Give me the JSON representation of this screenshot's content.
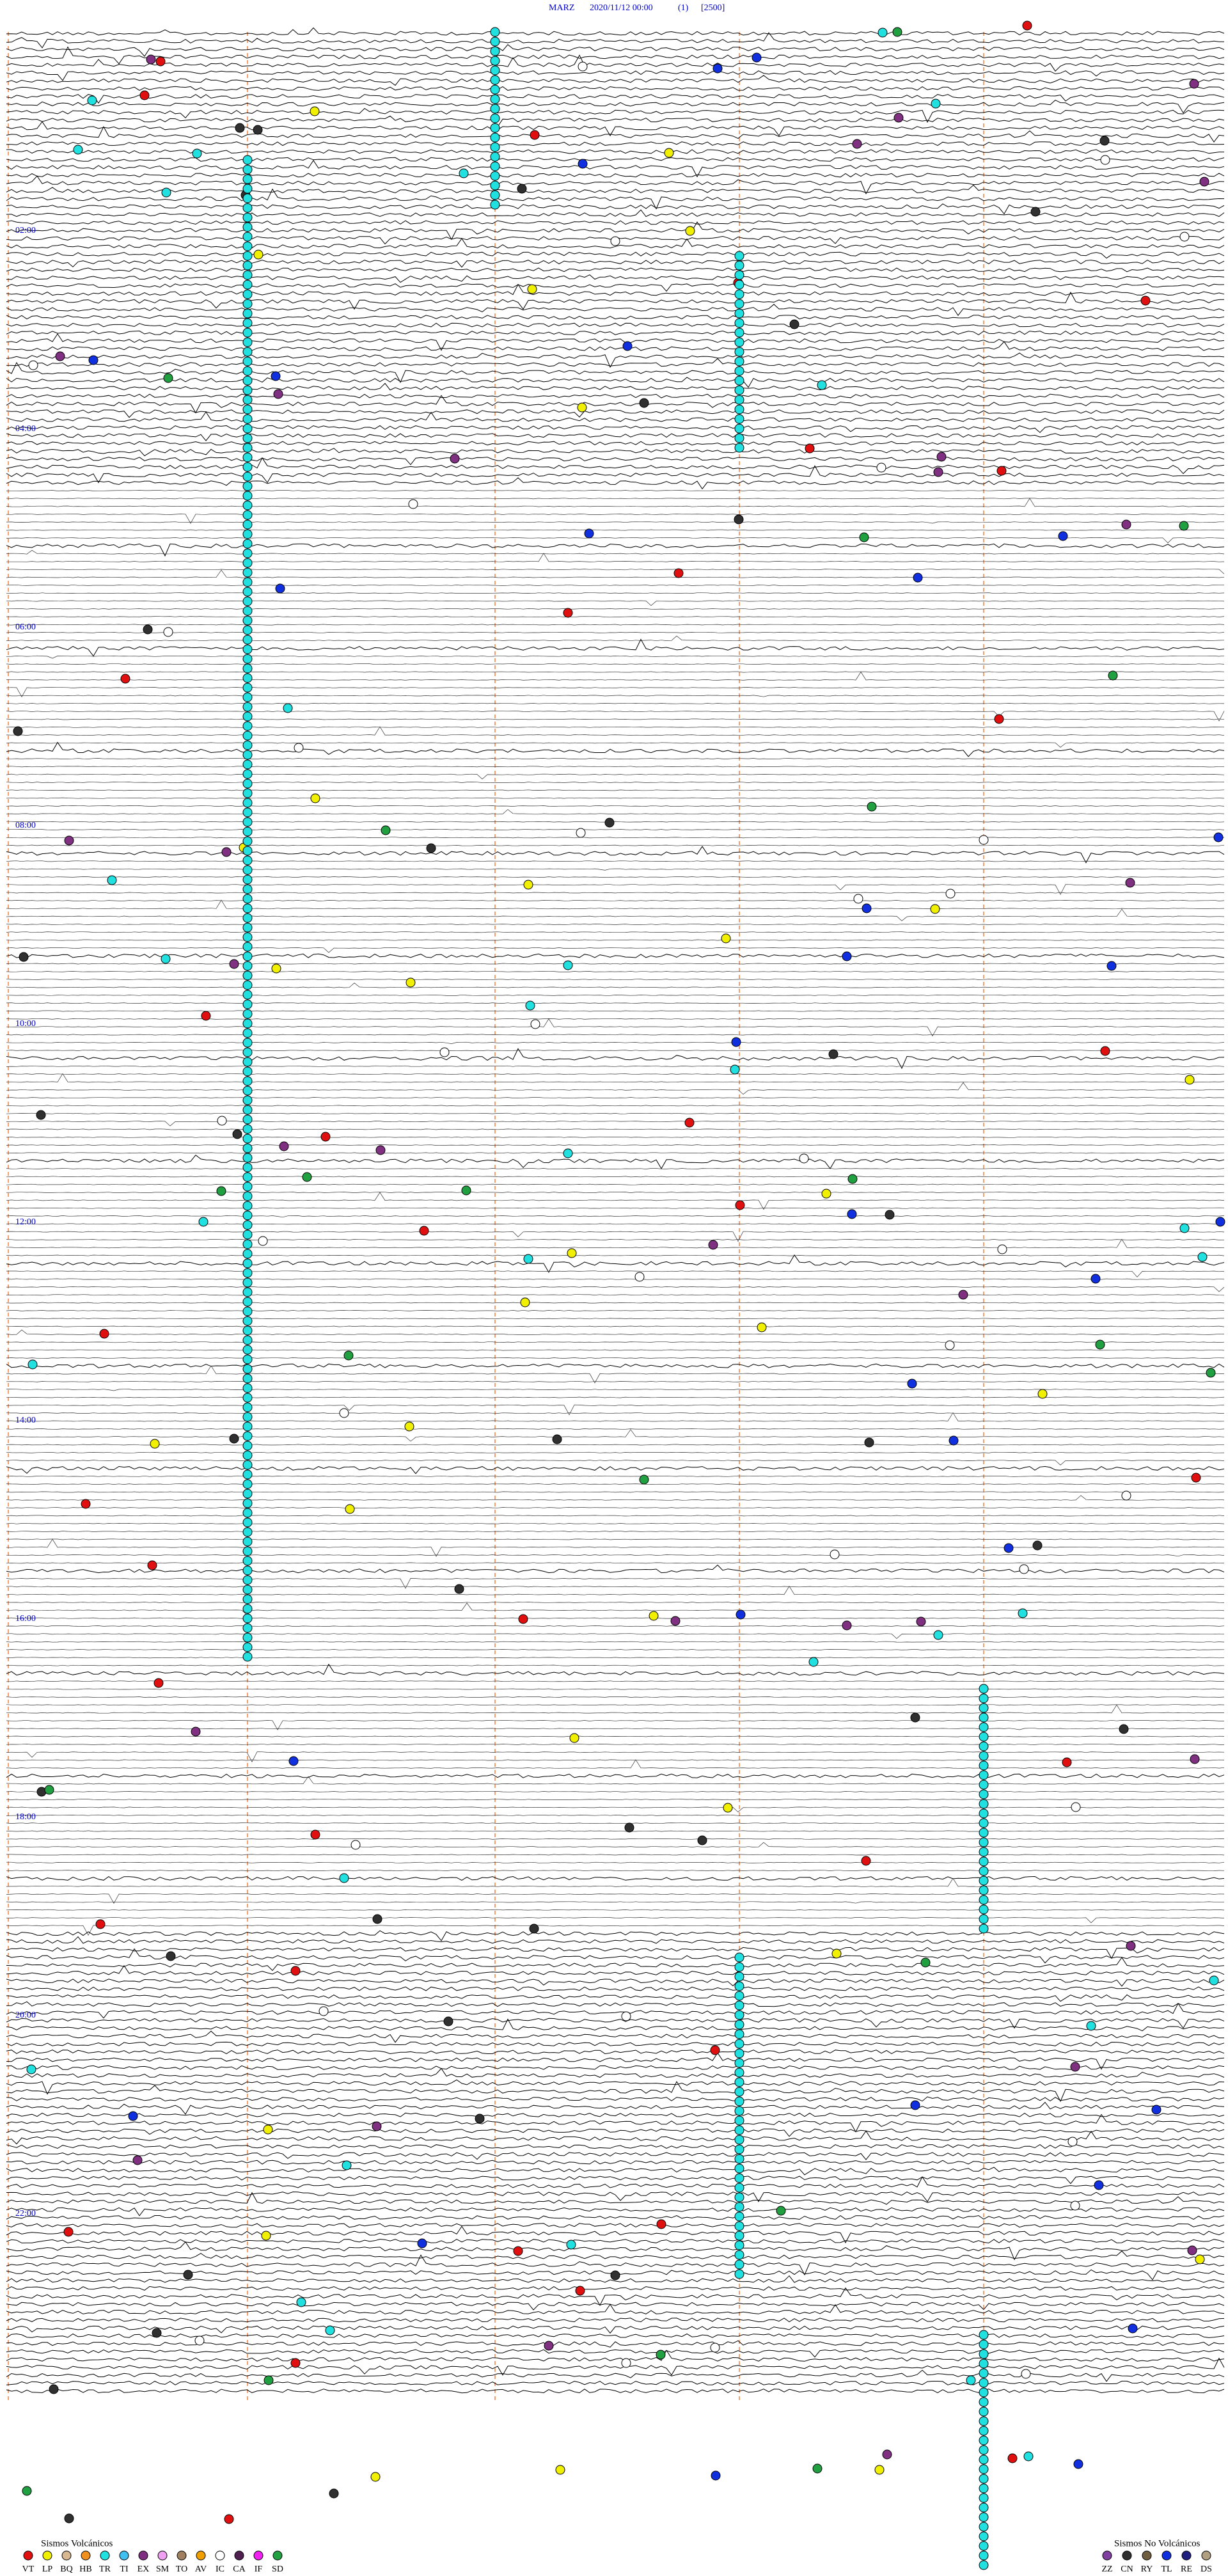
{
  "header": {
    "station": "MARZ",
    "datetime": "2020/11/12 00:00",
    "index": "(1)",
    "scale": "[2500]"
  },
  "hour_labels": [
    "02:00",
    "04:00",
    "06:00",
    "08:00",
    "10:00",
    "12:00",
    "14:00",
    "16:00",
    "18:00",
    "20:00",
    "22:00"
  ],
  "legend_volcanic": {
    "title": "Sismos Volcánicos",
    "items": [
      {
        "code": "VT",
        "color": "#e01010"
      },
      {
        "code": "LP",
        "color": "#f0f000"
      },
      {
        "code": "BQ",
        "color": "#d8b890"
      },
      {
        "code": "HB",
        "color": "#f09020"
      },
      {
        "code": "TR",
        "color": "#20e0e0"
      },
      {
        "code": "TI",
        "color": "#40c0f0"
      },
      {
        "code": "EX",
        "color": "#803080"
      },
      {
        "code": "SM",
        "color": "#f0a0f0"
      },
      {
        "code": "TO",
        "color": "#a08060"
      },
      {
        "code": "AV",
        "color": "#f0a000"
      },
      {
        "code": "IC",
        "color": "#ffffff"
      },
      {
        "code": "CA",
        "color": "#502050"
      },
      {
        "code": "IF",
        "color": "#f020f0"
      },
      {
        "code": "SD",
        "color": "#20a040"
      }
    ]
  },
  "legend_nonvolcanic": {
    "title": "Sismos No Volcánicos",
    "items": [
      {
        "code": "ZZ",
        "color": "#8040a0"
      },
      {
        "code": "CN",
        "color": "#303030"
      },
      {
        "code": "RY",
        "color": "#706040"
      },
      {
        "code": "TL",
        "color": "#1030e0"
      },
      {
        "code": "RE",
        "color": "#202080"
      },
      {
        "code": "DS",
        "color": "#b0a080"
      }
    ]
  }
}
